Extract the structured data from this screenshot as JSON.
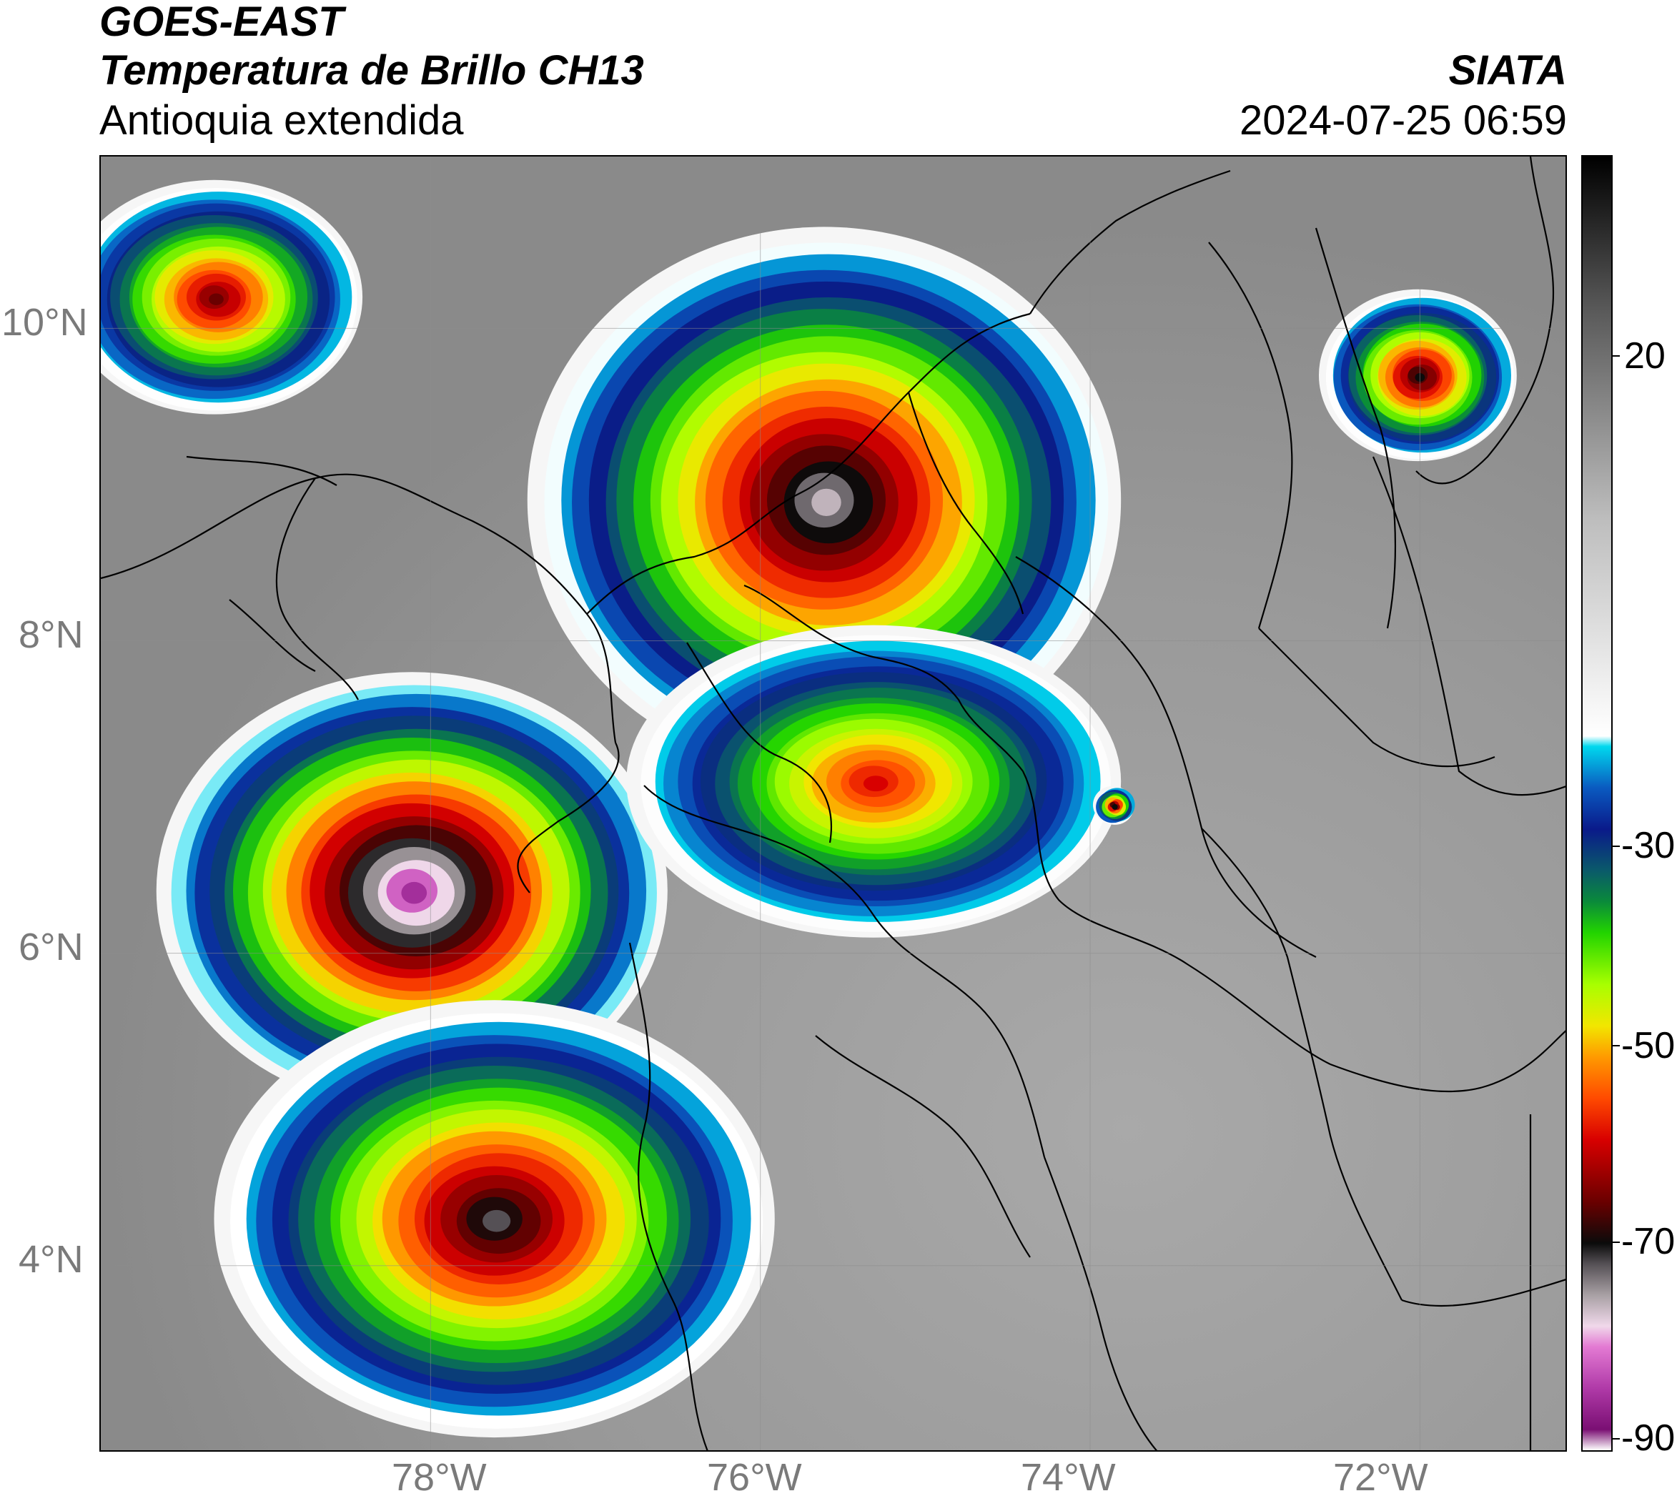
{
  "header": {
    "satellite": "GOES-EAST",
    "product": "Temperatura de Brillo CH13",
    "region": "Antioquia extendida",
    "agency": "SIATA",
    "datetime": "2024-07-25 06:59"
  },
  "map": {
    "lon_range": [
      -80.0,
      -71.1
    ],
    "lat_range": [
      2.8,
      11.1
    ],
    "lat_ticks": [
      {
        "value": 10,
        "label": "10°N"
      },
      {
        "value": 8,
        "label": "8°N"
      },
      {
        "value": 6,
        "label": "6°N"
      },
      {
        "value": 4,
        "label": "4°N"
      }
    ],
    "lon_ticks": [
      {
        "value": -78,
        "label": "78°W"
      },
      {
        "value": -76,
        "label": "76°W"
      },
      {
        "value": -74,
        "label": "74°W"
      },
      {
        "value": -72,
        "label": "72°W"
      }
    ],
    "grid": true,
    "storm_cells": [
      {
        "lon": -75.6,
        "lat": 8.9,
        "r_lon": 1.8,
        "r_lat": 1.75,
        "core_bt": -76
      },
      {
        "lon": -78.1,
        "lat": 6.4,
        "r_lon": 1.55,
        "r_lat": 1.4,
        "core_bt": -85
      },
      {
        "lon": -77.6,
        "lat": 4.3,
        "r_lon": 1.7,
        "r_lat": 1.4,
        "core_bt": -72
      },
      {
        "lon": -75.3,
        "lat": 7.1,
        "r_lon": 1.5,
        "r_lat": 1.0,
        "core_bt": -60
      },
      {
        "lon": -79.3,
        "lat": 10.2,
        "r_lon": 0.9,
        "r_lat": 0.75,
        "core_bt": -66
      },
      {
        "lon": -72.0,
        "lat": 9.7,
        "r_lon": 0.6,
        "r_lat": 0.55,
        "core_bt": -70
      },
      {
        "lon": -73.85,
        "lat": 6.95,
        "r_lon": 0.12,
        "r_lat": 0.12,
        "core_bt": -70
      }
    ]
  },
  "colorbar": {
    "vmin": -90,
    "vmax": 35,
    "ticks": [
      {
        "value": 20,
        "label": "20"
      },
      {
        "value": -30,
        "label": "-30"
      },
      {
        "value": -50,
        "label": "-50"
      },
      {
        "value": -70,
        "label": "-70"
      },
      {
        "value": -90,
        "label": "-90"
      }
    ],
    "stops": [
      {
        "value": -90,
        "color": "#ffffff"
      },
      {
        "value": -88,
        "color": "#7a0f73"
      },
      {
        "value": -84,
        "color": "#b03aa8"
      },
      {
        "value": -80,
        "color": "#e37ad3"
      },
      {
        "value": -78,
        "color": "#f0d8ea"
      },
      {
        "value": -75,
        "color": "#a8a0a4"
      },
      {
        "value": -72,
        "color": "#555055"
      },
      {
        "value": -70,
        "color": "#0b0b0b"
      },
      {
        "value": -66,
        "color": "#6a0000"
      },
      {
        "value": -60,
        "color": "#d80000"
      },
      {
        "value": -56,
        "color": "#ff4a00"
      },
      {
        "value": -52,
        "color": "#ff9a00"
      },
      {
        "value": -49,
        "color": "#f2e600"
      },
      {
        "value": -45,
        "color": "#a8ff00"
      },
      {
        "value": -40,
        "color": "#22d400"
      },
      {
        "value": -37,
        "color": "#0a8a3a"
      },
      {
        "value": -34,
        "color": "#0a5a6a"
      },
      {
        "value": -30,
        "color": "#0a1a8a"
      },
      {
        "value": -26,
        "color": "#0a5ac0"
      },
      {
        "value": -22,
        "color": "#00d8ee"
      },
      {
        "value": -21,
        "color": "#ffffff"
      },
      {
        "value": 0,
        "color": "#bdbdbd"
      },
      {
        "value": 20,
        "color": "#5a5a5a"
      },
      {
        "value": 35,
        "color": "#000000"
      }
    ]
  }
}
